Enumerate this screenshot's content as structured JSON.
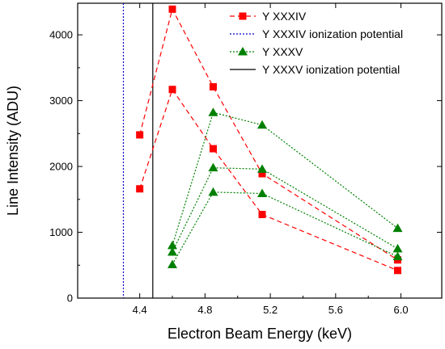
{
  "chart_data": {
    "type": "line",
    "title": "",
    "xlabel": "Electron Beam Energy (keV)",
    "ylabel": "Line Intensity (ADU)",
    "xlim": [
      4.02,
      6.25
    ],
    "ylim": [
      0,
      4480
    ],
    "xticks": [
      4.4,
      4.8,
      5.2,
      5.6,
      6.0
    ],
    "xtick_labels": [
      "4.4",
      "4.8",
      "5.2",
      "5.6",
      "6.0"
    ],
    "yticks": [
      0,
      1000,
      2000,
      3000,
      4000
    ],
    "ytick_labels": [
      "0",
      "1000",
      "2000",
      "3000",
      "4000"
    ],
    "grid": false,
    "legend_position": "top-right",
    "legend": [
      {
        "label": "Y XXXIV",
        "color": "#ff0000",
        "style": "dashed",
        "marker": "square"
      },
      {
        "label": "Y XXXIV ionization potential",
        "color": "#0000cc",
        "style": "dotted",
        "marker": "none"
      },
      {
        "label": "Y XXXV",
        "color": "#008000",
        "style": "dotted",
        "marker": "triangle"
      },
      {
        "label": "Y XXXV ionization potential",
        "color": "#000000",
        "style": "solid",
        "marker": "none"
      }
    ],
    "series": [
      {
        "group": "Y XXXIV",
        "color": "#ff0000",
        "style": "dashed",
        "marker": "square",
        "x": [
          4.4,
          4.6,
          4.85,
          5.15,
          5.98
        ],
        "y": [
          2480,
          4390,
          3210,
          1890,
          580
        ]
      },
      {
        "group": "Y XXXIV",
        "color": "#ff0000",
        "style": "dashed",
        "marker": "square",
        "x": [
          4.4,
          4.6,
          4.85,
          5.15,
          5.98
        ],
        "y": [
          1660,
          3170,
          2270,
          1270,
          420
        ]
      },
      {
        "group": "Y XXXV",
        "color": "#008000",
        "style": "dotted",
        "marker": "triangle",
        "x": [
          4.6,
          4.85,
          5.15,
          5.98
        ],
        "y": [
          800,
          2820,
          2630,
          1060
        ]
      },
      {
        "group": "Y XXXV",
        "color": "#008000",
        "style": "dotted",
        "marker": "triangle",
        "x": [
          4.6,
          4.85,
          5.15,
          5.98
        ],
        "y": [
          700,
          1980,
          1960,
          750
        ]
      },
      {
        "group": "Y XXXV",
        "color": "#008000",
        "style": "dotted",
        "marker": "triangle",
        "x": [
          4.6,
          4.85,
          5.15,
          5.98
        ],
        "y": [
          510,
          1610,
          1590,
          630
        ]
      }
    ],
    "vlines": [
      {
        "name": "Y XXXIV ionization potential",
        "x": 4.3,
        "color": "#0000cc",
        "style": "dotted"
      },
      {
        "name": "Y XXXV ionization potential",
        "x": 4.48,
        "color": "#000000",
        "style": "solid"
      }
    ]
  }
}
